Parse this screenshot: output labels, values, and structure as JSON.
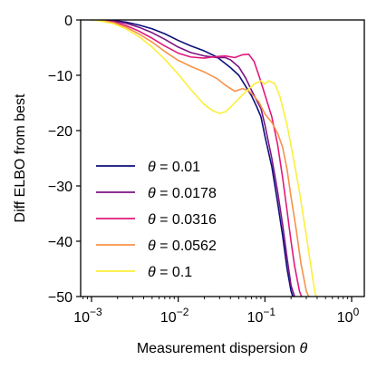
{
  "chart_data": {
    "type": "line",
    "xlabel": "Measurement dispersion θ",
    "ylabel": "Diff ELBO from best",
    "xscale": "log",
    "xlim": [
      0.00075,
      1.4
    ],
    "ylim": [
      -50,
      0
    ],
    "y_ticks": [
      0,
      -10,
      -20,
      -30,
      -40,
      -50
    ],
    "x_ticks": [
      0.001,
      0.01,
      0.1,
      1
    ],
    "x_tick_labels": [
      {
        "base": "10",
        "exp": "−3"
      },
      {
        "base": "10",
        "exp": "−2"
      },
      {
        "base": "10",
        "exp": "−1"
      },
      {
        "base": "10",
        "exp": "0"
      }
    ],
    "grid": false,
    "legend": "lower-left",
    "series": [
      {
        "name": "= 0.01",
        "color": "#0d0f7a",
        "x": [
          0.001,
          0.0013,
          0.0018,
          0.0025,
          0.0035,
          0.005,
          0.007,
          0.01,
          0.014,
          0.02,
          0.028,
          0.04,
          0.05,
          0.06,
          0.07,
          0.08,
          0.09,
          0.1,
          0.12,
          0.14,
          0.16,
          0.18,
          0.2,
          0.22
        ],
        "y": [
          0,
          0,
          -0.1,
          -0.4,
          -0.9,
          -1.6,
          -2.5,
          -3.7,
          -4.7,
          -5.6,
          -6.7,
          -8.6,
          -10.0,
          -12.0,
          -13.7,
          -15.6,
          -17.5,
          -21.0,
          -26.5,
          -33.0,
          -39.0,
          -45.0,
          -49.0,
          -51.0
        ]
      },
      {
        "name": "= 0.0178",
        "color": "#7b1583",
        "x": [
          0.001,
          0.0013,
          0.0018,
          0.0025,
          0.0035,
          0.005,
          0.007,
          0.01,
          0.014,
          0.02,
          0.028,
          0.035,
          0.04,
          0.05,
          0.06,
          0.07,
          0.08,
          0.09,
          0.1,
          0.12,
          0.14,
          0.16,
          0.18,
          0.2,
          0.23
        ],
        "y": [
          0,
          0,
          -0.2,
          -0.6,
          -1.3,
          -2.3,
          -3.5,
          -4.9,
          -5.9,
          -6.5,
          -6.8,
          -6.8,
          -7.2,
          -8.5,
          -10.5,
          -12.7,
          -14.5,
          -16.0,
          -19.0,
          -25.0,
          -31.0,
          -37.0,
          -43.0,
          -48.0,
          -51.0
        ]
      },
      {
        "name": "= 0.0316",
        "color": "#e01a7c",
        "x": [
          0.001,
          0.0013,
          0.0018,
          0.0025,
          0.0035,
          0.005,
          0.007,
          0.01,
          0.014,
          0.02,
          0.028,
          0.035,
          0.045,
          0.055,
          0.065,
          0.075,
          0.085,
          0.1,
          0.12,
          0.14,
          0.16,
          0.18,
          0.2,
          0.22,
          0.25,
          0.28
        ],
        "y": [
          0,
          -0.1,
          -0.4,
          -1.0,
          -2.0,
          -3.3,
          -4.7,
          -6.0,
          -6.7,
          -6.9,
          -6.6,
          -6.5,
          -6.8,
          -6.3,
          -6.2,
          -7.5,
          -10.0,
          -13.5,
          -17.5,
          -22.5,
          -28.5,
          -34.5,
          -40.0,
          -44.5,
          -49.0,
          -51.0
        ]
      },
      {
        "name": "= 0.0562",
        "color": "#f6924a",
        "x": [
          0.001,
          0.0013,
          0.0018,
          0.0025,
          0.0035,
          0.005,
          0.007,
          0.01,
          0.014,
          0.02,
          0.028,
          0.035,
          0.045,
          0.055,
          0.065,
          0.075,
          0.085,
          0.1,
          0.12,
          0.14,
          0.16,
          0.18,
          0.2,
          0.23,
          0.26,
          0.3,
          0.34
        ],
        "y": [
          0,
          -0.1,
          -0.5,
          -1.3,
          -2.5,
          -4.0,
          -5.7,
          -7.3,
          -8.4,
          -9.4,
          -10.6,
          -11.8,
          -12.9,
          -12.4,
          -12.8,
          -13.8,
          -14.8,
          -17.0,
          -18.5,
          -20.5,
          -23.0,
          -27.0,
          -32.0,
          -38.0,
          -44.0,
          -49.0,
          -51.0
        ]
      },
      {
        "name": "= 0.1",
        "color": "#fcef3b",
        "x": [
          0.001,
          0.0013,
          0.0018,
          0.0025,
          0.0035,
          0.005,
          0.007,
          0.01,
          0.014,
          0.02,
          0.025,
          0.03,
          0.035,
          0.04,
          0.05,
          0.06,
          0.075,
          0.09,
          0.1,
          0.11,
          0.13,
          0.15,
          0.18,
          0.21,
          0.25,
          0.3,
          0.35,
          0.38,
          0.42
        ],
        "y": [
          0,
          -0.2,
          -0.7,
          -1.6,
          -3.0,
          -4.9,
          -7.1,
          -9.8,
          -12.6,
          -15.3,
          -16.4,
          -16.9,
          -16.6,
          -15.8,
          -14.2,
          -13.0,
          -11.6,
          -11.0,
          -11.6,
          -11.0,
          -11.5,
          -14.0,
          -19.0,
          -24.5,
          -31.0,
          -39.0,
          -46.0,
          -49.5,
          -51.0
        ]
      }
    ]
  }
}
